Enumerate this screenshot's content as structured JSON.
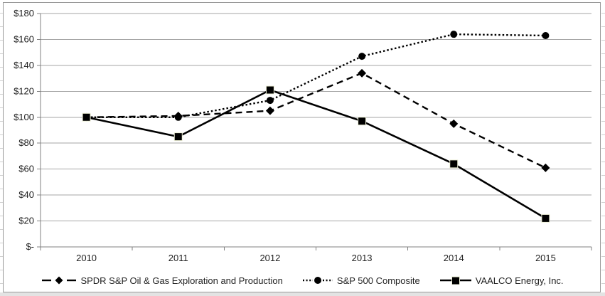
{
  "chart_data": {
    "type": "line",
    "title": "",
    "categories": [
      "2010",
      "2011",
      "2012",
      "2013",
      "2014",
      "2015"
    ],
    "series": [
      {
        "name": "SPDR S&P Oil & Gas Exploration and Production",
        "marker": "diamond",
        "line_style": "dashed",
        "color": "#000000",
        "values": [
          100,
          101,
          105,
          134,
          95,
          61
        ]
      },
      {
        "name": "S&P 500 Composite",
        "marker": "circle",
        "line_style": "dotted",
        "color": "#000000",
        "values": [
          100,
          100,
          113,
          147,
          164,
          163
        ]
      },
      {
        "name": "VAALCO Energy, Inc.",
        "marker": "square",
        "line_style": "solid",
        "color": "#000000",
        "values": [
          100,
          85,
          121,
          97,
          64,
          22
        ]
      }
    ],
    "y_axis": {
      "min": 0,
      "max": 180,
      "step": 20,
      "tick_labels": [
        "$-",
        "$20",
        "$40",
        "$60",
        "$80",
        "$100",
        "$120",
        "$140",
        "$160",
        "$180"
      ]
    },
    "x_axis": {
      "tick_labels": [
        "2010",
        "2011",
        "2012",
        "2013",
        "2014",
        "2015"
      ]
    },
    "grid": true,
    "legend_position": "bottom",
    "colors": {
      "series_line": "#000000",
      "gridline": "#a6a6a6",
      "axis_line": "#808080",
      "frame_border": "#999999",
      "text": "#1f1f1f"
    }
  }
}
